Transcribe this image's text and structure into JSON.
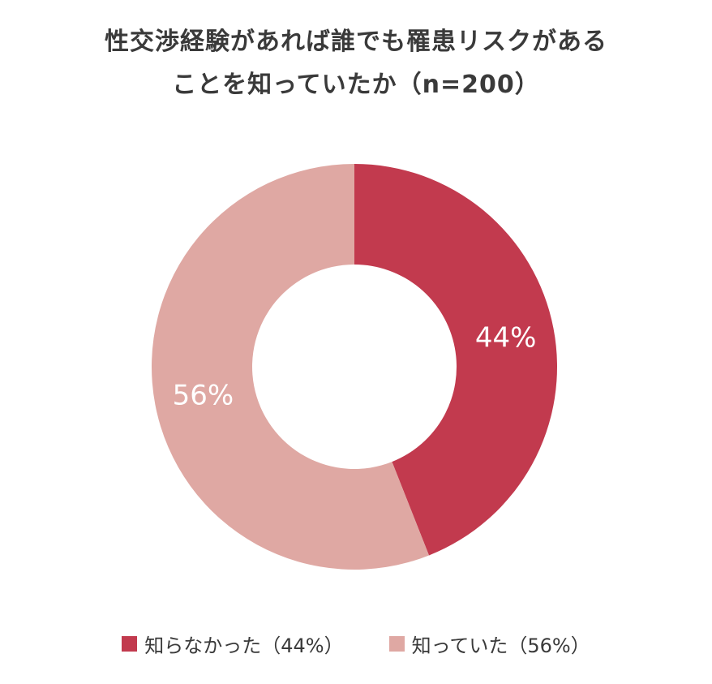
{
  "chart_data": {
    "type": "pie",
    "subtype": "donut",
    "title": "性交渉経験があれば誰でも罹患リスクがあることを知っていたか（n=200）",
    "title_lines": [
      "性交渉経験があれば誰でも罹患リスクがある",
      "ことを知っていたか（n=200）"
    ],
    "n": 200,
    "start_angle_deg": 0,
    "direction": "clockwise",
    "inner_radius_ratio": 0.5,
    "segments": [
      {
        "id": "did-not-know",
        "label": "知らなかった",
        "value_pct": 44,
        "data_label": "44%",
        "color": "#c23a4e"
      },
      {
        "id": "knew",
        "label": "知っていた",
        "value_pct": 56,
        "data_label": "56%",
        "color": "#dfa8a3"
      }
    ],
    "legend_position": "bottom",
    "legend": [
      {
        "label": "知らなかった（44%）",
        "color": "#c23a4e"
      },
      {
        "label": "知っていた（56%）",
        "color": "#dfa8a3"
      }
    ],
    "data_label_color": "#ffffff",
    "title_color": "#3a3a3a",
    "background_color": "#ffffff"
  }
}
